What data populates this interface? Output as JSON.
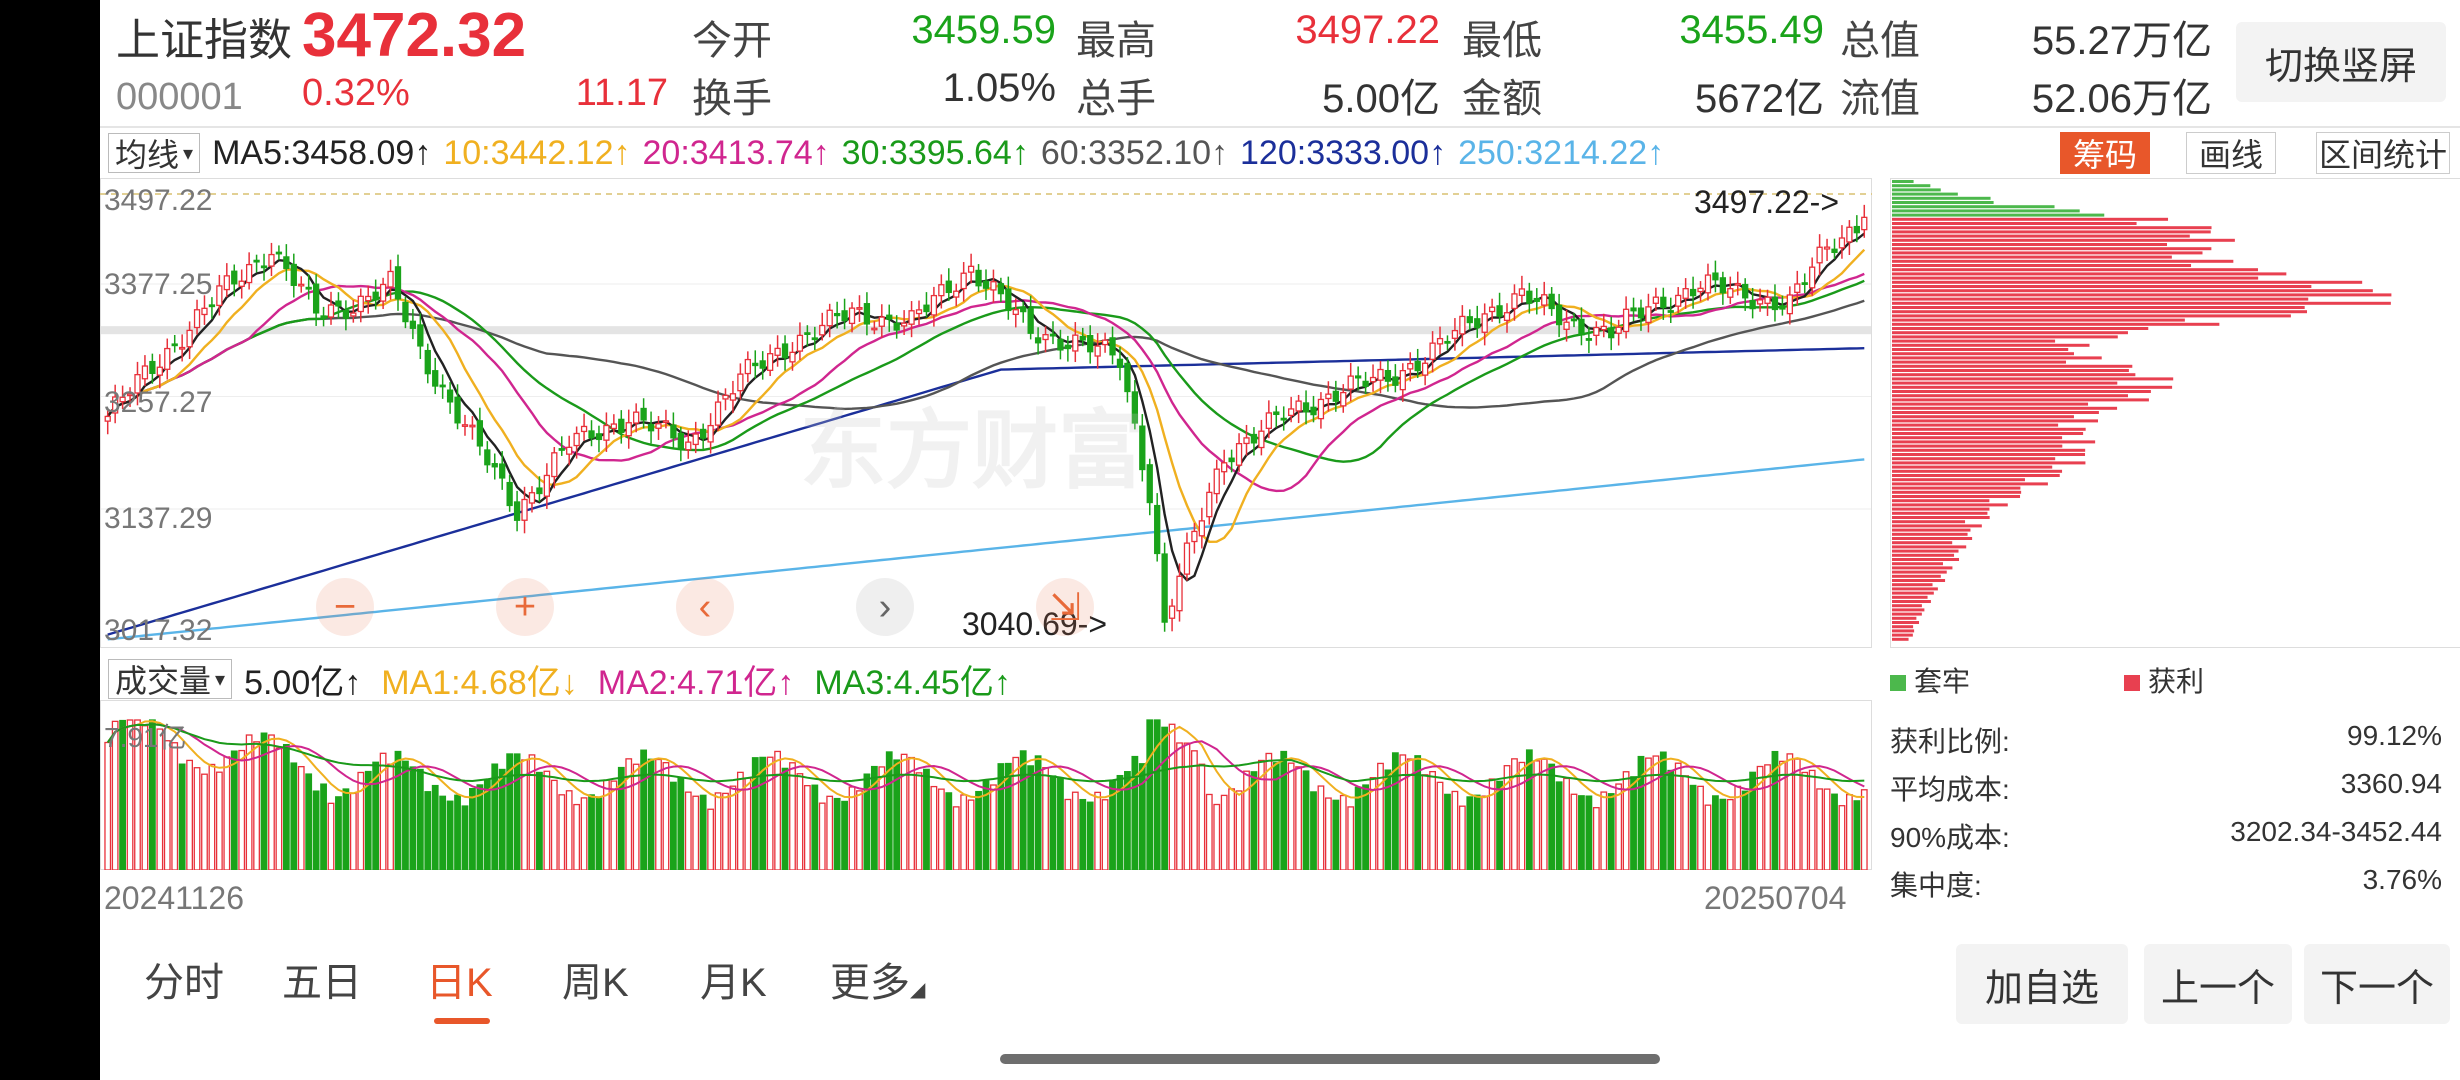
{
  "header": {
    "name": "上证指数",
    "price": "3472.32",
    "code": "000001",
    "pct_change": "0.32%",
    "change": "11.17",
    "stats": [
      {
        "label": "今开",
        "value": "3459.59",
        "color": "green"
      },
      {
        "label": "最高",
        "value": "3497.22",
        "color": "red"
      },
      {
        "label": "最低",
        "value": "3455.49",
        "color": "green"
      },
      {
        "label": "总值",
        "value": "55.27万亿",
        "color": "dark"
      },
      {
        "label": "换手",
        "value": "1.05%",
        "color": "dark"
      },
      {
        "label": "总手",
        "value": "5.00亿",
        "color": "dark"
      },
      {
        "label": "金额",
        "value": "5672亿",
        "color": "dark"
      },
      {
        "label": "流值",
        "value": "52.06万亿",
        "color": "dark"
      }
    ],
    "switch_button": "切换竖屏"
  },
  "ma_row": {
    "selector": "均线",
    "items": [
      {
        "text": "MA5:3458.09↑",
        "color": "#222222"
      },
      {
        "text": "10:3442.12↑",
        "color": "#f0b020"
      },
      {
        "text": "20:3413.74↑",
        "color": "#d0268f"
      },
      {
        "text": "30:3395.64↑",
        "color": "#1a9a1a"
      },
      {
        "text": "60:3352.10↑",
        "color": "#555555"
      },
      {
        "text": "120:3333.00↑",
        "color": "#1b2f9a"
      },
      {
        "text": "250:3214.22↑",
        "color": "#5ab4e8"
      }
    ],
    "tabs": [
      "筹码",
      "画线",
      "区间统计"
    ]
  },
  "chart": {
    "y_ticks": [
      "3497.22",
      "3377.25",
      "3257.27",
      "3137.29",
      "3017.32"
    ],
    "high_marker": "3497.22->",
    "low_marker": "3040.69->",
    "watermark": "东方财富",
    "controls": [
      "−",
      "+",
      "‹",
      "›",
      "⇲"
    ]
  },
  "chart_data": {
    "type": "candlestick",
    "x_range": [
      "20241126",
      "20250704"
    ],
    "ylim": [
      3017.32,
      3497.22
    ],
    "ma_latest": {
      "MA5": 3458.09,
      "MA10": 3442.12,
      "MA20": 3413.74,
      "MA30": 3395.64,
      "MA60": 3352.1,
      "MA120": 3333.0,
      "MA250": 3214.22
    },
    "trend_points": [
      {
        "i": 0,
        "close": 3260
      },
      {
        "i": 8,
        "close": 3330
      },
      {
        "i": 15,
        "close": 3390
      },
      {
        "i": 22,
        "close": 3440
      },
      {
        "i": 28,
        "close": 3370
      },
      {
        "i": 33,
        "close": 3380
      },
      {
        "i": 38,
        "close": 3400
      },
      {
        "i": 42,
        "close": 3330
      },
      {
        "i": 48,
        "close": 3250
      },
      {
        "i": 55,
        "close": 3160
      },
      {
        "i": 62,
        "close": 3230
      },
      {
        "i": 70,
        "close": 3260
      },
      {
        "i": 78,
        "close": 3230
      },
      {
        "i": 85,
        "close": 3300
      },
      {
        "i": 92,
        "close": 3340
      },
      {
        "i": 100,
        "close": 3370
      },
      {
        "i": 108,
        "close": 3360
      },
      {
        "i": 116,
        "close": 3420
      },
      {
        "i": 124,
        "close": 3350
      },
      {
        "i": 130,
        "close": 3340
      },
      {
        "i": 136,
        "close": 3320
      },
      {
        "i": 140,
        "close": 3180
      },
      {
        "i": 142,
        "close": 3040.69
      },
      {
        "i": 145,
        "close": 3110
      },
      {
        "i": 150,
        "close": 3220
      },
      {
        "i": 158,
        "close": 3260
      },
      {
        "i": 166,
        "close": 3290
      },
      {
        "i": 172,
        "close": 3300
      },
      {
        "i": 178,
        "close": 3330
      },
      {
        "i": 185,
        "close": 3370
      },
      {
        "i": 190,
        "close": 3390
      },
      {
        "i": 196,
        "close": 3360
      },
      {
        "i": 202,
        "close": 3350
      },
      {
        "i": 208,
        "close": 3380
      },
      {
        "i": 214,
        "close": 3400
      },
      {
        "i": 220,
        "close": 3390
      },
      {
        "i": 226,
        "close": 3380
      },
      {
        "i": 231,
        "close": 3440
      },
      {
        "i": 236,
        "close": 3472.32
      }
    ]
  },
  "volume": {
    "selector": "成交量",
    "items": [
      {
        "text": "5.00亿↑",
        "color": "#222222"
      },
      {
        "text": "MA1:4.68亿↓",
        "color": "#f0b020"
      },
      {
        "text": "MA2:4.71亿↑",
        "color": "#d0268f"
      },
      {
        "text": "MA3:4.45亿↑",
        "color": "#1a9a1a"
      }
    ],
    "axis_label": "7.91亿",
    "start_date": "20241126",
    "end_date": "20250704"
  },
  "chips": {
    "legend": [
      "套牢",
      "获利"
    ],
    "stats": [
      {
        "label": "获利比例:",
        "value": "99.12%"
      },
      {
        "label": "平均成本:",
        "value": "3360.94"
      },
      {
        "label": "90%成本:",
        "value": "3202.34-3452.44"
      },
      {
        "label": "集中度:",
        "value": "3.76%"
      }
    ]
  },
  "period_tabs": [
    {
      "label": "分时",
      "active": false
    },
    {
      "label": "五日",
      "active": false
    },
    {
      "label": "日K",
      "active": true
    },
    {
      "label": "周K",
      "active": false
    },
    {
      "label": "月K",
      "active": false
    },
    {
      "label": "更多",
      "active": false
    }
  ],
  "bottom_buttons": [
    "加自选",
    "上一个",
    "下一个"
  ],
  "colors": {
    "up": "#e8303a",
    "down": "#1aa31a",
    "accent": "#e8572a"
  }
}
